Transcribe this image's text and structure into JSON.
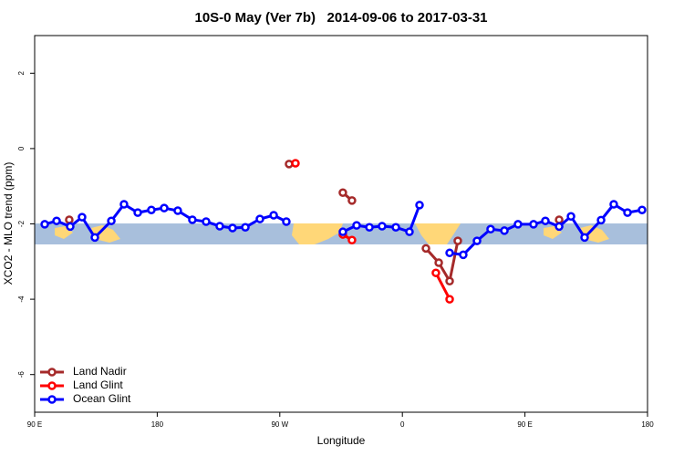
{
  "chart_data": {
    "type": "line",
    "title": "10S-0 May (Ver 7b)   2014-09-06 to 2017-03-31",
    "x_label": "Longitude",
    "y_label": "XCO2 - MLO trend (ppm)",
    "xlim": [
      90,
      540
    ],
    "xticks": [
      {
        "value": 90,
        "label": "90 E"
      },
      {
        "value": 180,
        "label": "180"
      },
      {
        "value": 270,
        "label": "90 W"
      },
      {
        "value": 360,
        "label": "0"
      },
      {
        "value": 450,
        "label": "90 E"
      },
      {
        "value": 540,
        "label": "180"
      }
    ],
    "ylim": [
      -7,
      3
    ],
    "yticks": [
      2,
      0,
      -2,
      -4,
      -6
    ],
    "legend": "bottom-left",
    "series": [
      {
        "name": "Land Nadir",
        "color": "#a52a2a",
        "x": [
          115.4,
          null,
          276.8,
          null,
          316.3,
          323.0,
          null,
          377.3,
          386.7,
          394.7,
          400.7,
          null,
          475.1
        ],
        "values": [
          -1.89,
          null,
          -0.41,
          null,
          -1.17,
          -1.38,
          null,
          -2.65,
          -3.03,
          -3.52,
          -2.45,
          null,
          -1.89
        ]
      },
      {
        "name": "Land Glint",
        "color": "#ff0000",
        "x": [
          281.5,
          null,
          316.3,
          323.0,
          null,
          384.6,
          394.7
        ],
        "values": [
          -0.39,
          null,
          -2.28,
          -2.43,
          null,
          -3.3,
          -4.0
        ]
      },
      {
        "name": "Ocean Glint",
        "color": "#0000ff",
        "x": [
          97.4,
          106.1,
          116.1,
          124.8,
          134.2,
          146.3,
          155.6,
          165.7,
          175.7,
          185.1,
          195.1,
          205.8,
          215.9,
          225.9,
          235.3,
          244.7,
          255.4,
          265.5,
          274.8,
          null,
          316.3,
          326.4,
          335.8,
          345.1,
          355.2,
          365.2,
          372.6,
          null,
          394.7,
          404.7,
          414.8,
          424.8,
          434.9,
          444.9,
          456.3,
          465.0,
          475.1,
          483.8,
          493.8,
          505.9,
          515.2,
          525.3,
          536.0
        ],
        "values": [
          -2.01,
          -1.92,
          -2.07,
          -1.82,
          -2.36,
          -1.92,
          -1.48,
          -1.7,
          -1.63,
          -1.58,
          -1.65,
          -1.89,
          -1.94,
          -2.06,
          -2.11,
          -2.09,
          -1.87,
          -1.77,
          -1.94,
          null,
          -2.21,
          -2.04,
          -2.09,
          -2.06,
          -2.09,
          -2.21,
          -1.5,
          null,
          -2.77,
          -2.82,
          -2.45,
          -2.14,
          -2.18,
          -2.01,
          -2.01,
          -1.92,
          -2.07,
          -1.8,
          -2.36,
          -1.9,
          -1.48,
          -1.7,
          -1.63
        ]
      }
    ]
  }
}
